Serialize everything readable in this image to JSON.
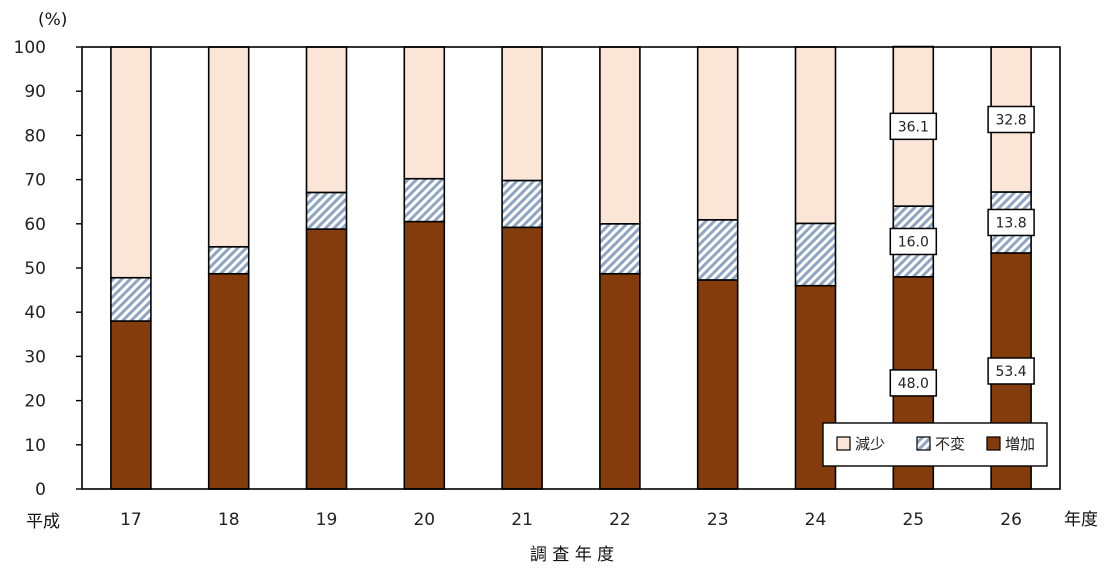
{
  "chart_data": {
    "type": "bar",
    "stacked": true,
    "y_unit_label": "(%)",
    "x_prefix_label": "平成",
    "x_suffix_label": "年度",
    "xlabel": "調 査 年 度",
    "categories": [
      "17",
      "18",
      "19",
      "20",
      "21",
      "22",
      "23",
      "24",
      "25",
      "26"
    ],
    "ylim": [
      0,
      100
    ],
    "yticks": [
      0,
      10,
      20,
      30,
      40,
      50,
      60,
      70,
      80,
      90,
      100
    ],
    "grid": false,
    "legend_position": "bottom-right",
    "series": [
      {
        "name": "増加",
        "color": "#843c0c",
        "pattern": "solid",
        "values": [
          38.0,
          48.7,
          58.8,
          60.5,
          59.2,
          48.7,
          47.3,
          46.0,
          48.0,
          53.4
        ]
      },
      {
        "name": "不変",
        "color": "#a9bcd3",
        "pattern": "hatch",
        "values": [
          9.8,
          6.1,
          8.3,
          9.7,
          10.6,
          11.3,
          13.6,
          14.1,
          16.0,
          13.8
        ]
      },
      {
        "name": "減少",
        "color": "#fbe5d6",
        "pattern": "solid",
        "values": [
          52.2,
          45.2,
          32.9,
          29.8,
          30.2,
          40.0,
          39.1,
          39.9,
          36.1,
          32.8
        ]
      }
    ],
    "legend_order": [
      "減少",
      "不変",
      "増加"
    ],
    "data_labels": [
      {
        "category": "25",
        "series": "増加",
        "text": "48.0"
      },
      {
        "category": "25",
        "series": "不変",
        "text": "16.0"
      },
      {
        "category": "25",
        "series": "減少",
        "text": "36.1"
      },
      {
        "category": "26",
        "series": "増加",
        "text": "53.4"
      },
      {
        "category": "26",
        "series": "不変",
        "text": "13.8"
      },
      {
        "category": "26",
        "series": "減少",
        "text": "32.8"
      }
    ]
  }
}
